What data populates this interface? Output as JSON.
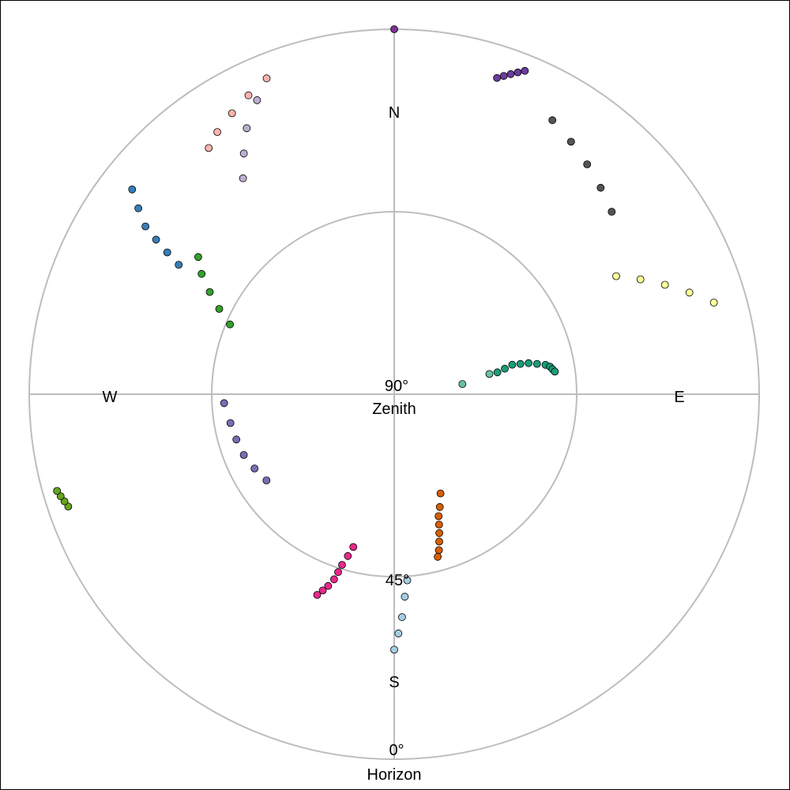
{
  "chart_data": {
    "type": "scatter",
    "coordinate_system": "polar-sky",
    "grid": true,
    "legend": "none",
    "directions": {
      "north": "N",
      "south": "S",
      "east": "E",
      "west": "W"
    },
    "ring_labels": {
      "zenith_degrees": "90°",
      "zenith_name": "Zenith",
      "mid_degrees": "45°",
      "horizon_degrees": "0°",
      "horizon_name": "Horizon"
    },
    "elevation_range": [
      0,
      90
    ],
    "azimuth_range": [
      0,
      360
    ],
    "series": [
      {
        "color": "#66c2a5",
        "az": [
          81.5,
          78
        ],
        "el": [
          73,
          66
        ]
      },
      {
        "color": "#1b9e77",
        "az": [
          78,
          77,
          76,
          76.5,
          77,
          78,
          79,
          80,
          81,
          82
        ],
        "el": [
          64,
          62,
          60,
          58,
          56,
          54,
          52,
          51,
          50.5,
          50
        ]
      },
      {
        "color": "#d95f02",
        "az": [
          155,
          158,
          160,
          161,
          162,
          163,
          164,
          165
        ],
        "el": [
          63,
          60,
          58,
          56,
          54,
          52,
          50,
          48.5
        ]
      },
      {
        "color": "#e7298a",
        "az": [
          195,
          196,
          197,
          197.5,
          198,
          199,
          200,
          201
        ],
        "el": [
          51,
          48.5,
          46,
          44,
          42,
          40,
          38.5,
          37
        ]
      },
      {
        "color": "#a6cee3",
        "az": [
          176,
          177,
          178,
          179,
          180
        ],
        "el": [
          44,
          40,
          35,
          31,
          27
        ]
      },
      {
        "color": "#7570b3",
        "az": [
          236,
          242,
          248,
          254,
          260,
          267
        ],
        "el": [
          52,
          51,
          50,
          49.5,
          49,
          48
        ]
      },
      {
        "color": "#33a02c",
        "az": [
          293,
          296,
          299,
          302,
          305
        ],
        "el": [
          46,
          42,
          38,
          34,
          31
        ]
      },
      {
        "color": "#66a61e",
        "az": [
          251,
          252,
          253,
          254
        ],
        "el": [
          5,
          4.5,
          4,
          3.5
        ]
      },
      {
        "color": "#377eb8",
        "az": [
          301,
          302,
          303,
          304,
          306,
          308
        ],
        "el": [
          28,
          24,
          20,
          16,
          12,
          8
        ]
      },
      {
        "color": "#fbb4ae",
        "az": [
          323,
          326,
          330,
          334,
          338
        ],
        "el": [
          14,
          12,
          10,
          8,
          6
        ]
      },
      {
        "color": "#bcaed1",
        "az": [
          325,
          328,
          331,
          335
        ],
        "el": [
          25,
          20,
          15,
          10
        ]
      },
      {
        "color": "#6a3d9a",
        "az": [
          18,
          19,
          20,
          21,
          22
        ],
        "el": [
          8,
          7,
          6,
          5,
          4
        ]
      },
      {
        "color": "#7b3294",
        "az": [
          0
        ],
        "el": [
          0
        ]
      },
      {
        "color": "#555555",
        "az": [
          30,
          35,
          40,
          45,
          50
        ],
        "el": [
          12,
          14,
          16,
          18,
          20
        ]
      },
      {
        "color": "#ffff99",
        "az": [
          62,
          65,
          68,
          71,
          74
        ],
        "el": [
          28,
          23,
          18,
          13,
          8
        ]
      }
    ]
  }
}
